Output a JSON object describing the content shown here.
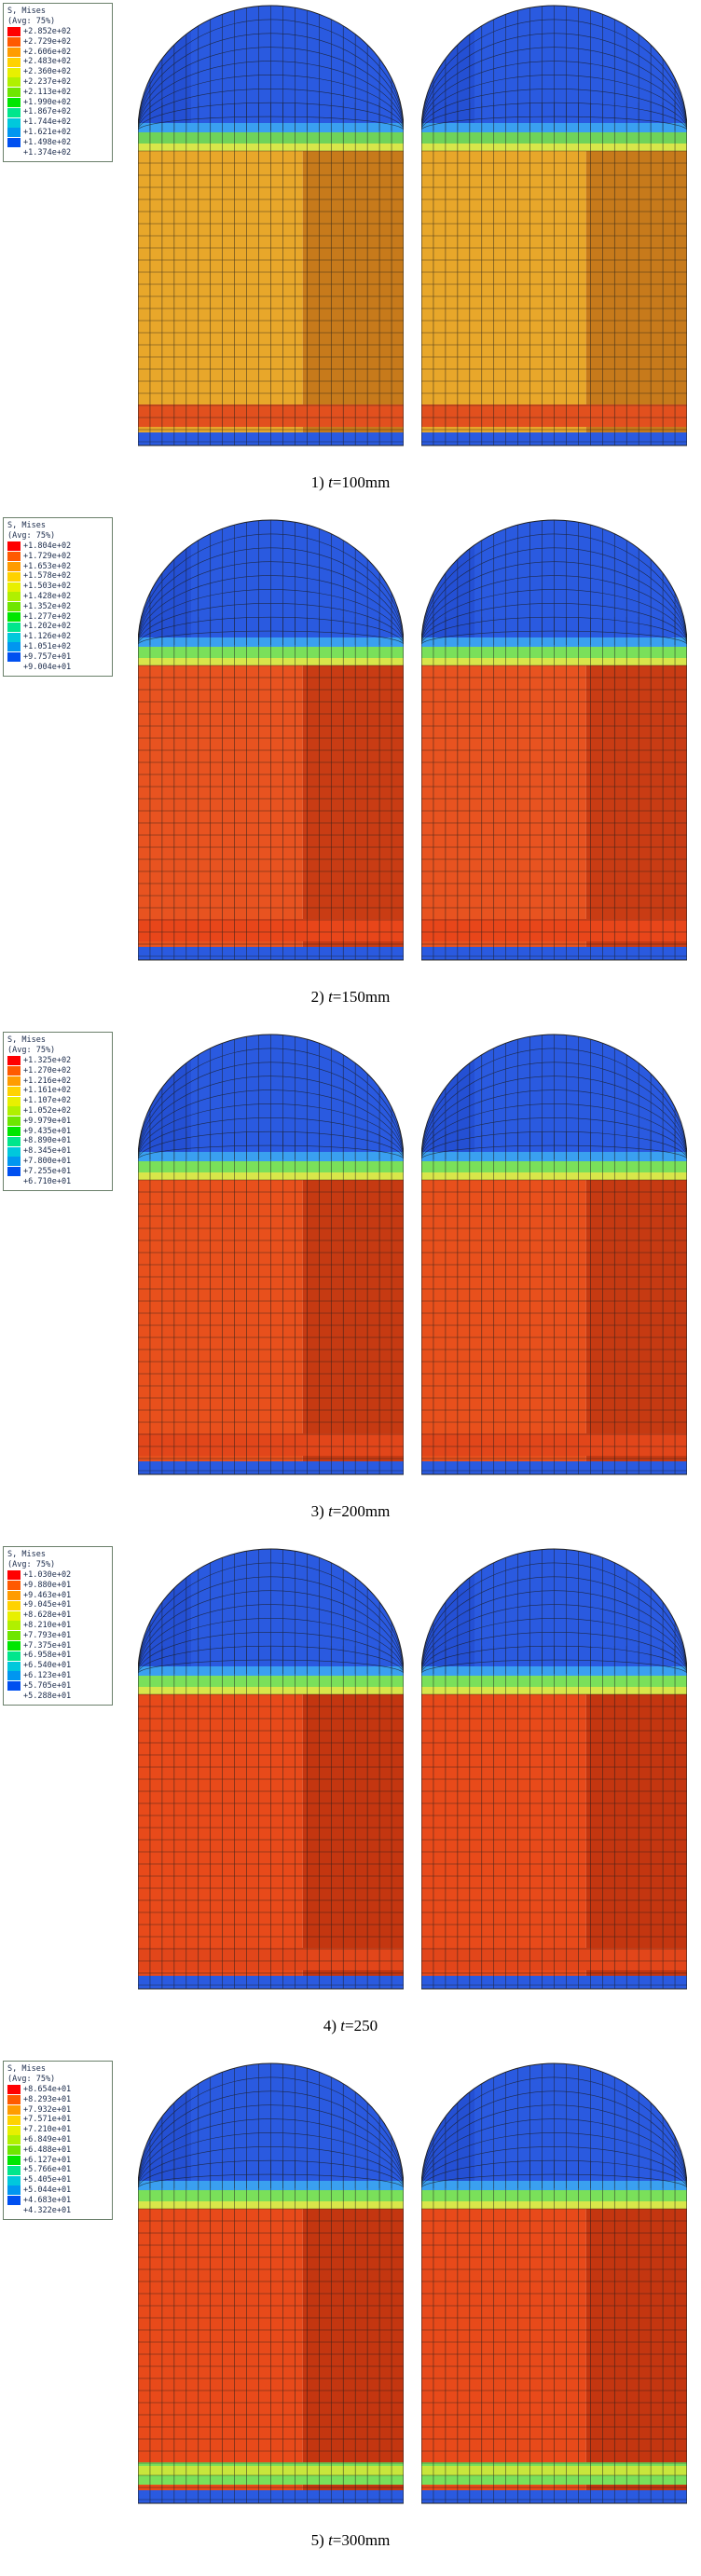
{
  "panels": [
    {
      "caption_prefix": "1)",
      "caption_var": "t",
      "caption_value": "=100mm",
      "legend_title": "S, Mises",
      "legend_avg": "(Avg: 75%)",
      "legend_values": [
        "+2.852e+02",
        "+2.729e+02",
        "+2.606e+02",
        "+2.483e+02",
        "+2.360e+02",
        "+2.237e+02",
        "+2.113e+02",
        "+1.990e+02",
        "+1.867e+02",
        "+1.744e+02",
        "+1.621e+02",
        "+1.498e+02",
        "+1.374e+02"
      ],
      "body_colors": [
        "#e8a72a",
        "#c77a1b"
      ],
      "band_color": "#e2501e",
      "neck_color": "#6fd35a"
    },
    {
      "caption_prefix": "2)",
      "caption_var": "t",
      "caption_value": "=150mm",
      "legend_title": "S, Mises",
      "legend_avg": "(Avg: 75%)",
      "legend_values": [
        "+1.804e+02",
        "+1.729e+02",
        "+1.653e+02",
        "+1.578e+02",
        "+1.503e+02",
        "+1.428e+02",
        "+1.352e+02",
        "+1.277e+02",
        "+1.202e+02",
        "+1.126e+02",
        "+1.051e+02",
        "+9.757e+01",
        "+9.004e+01"
      ],
      "body_colors": [
        "#e85320",
        "#c93c14"
      ],
      "band_color": "#e8461a",
      "neck_color": "#7ae05a"
    },
    {
      "caption_prefix": "3)",
      "caption_var": "t",
      "caption_value": "=200mm",
      "legend_title": "S, Mises",
      "legend_avg": "(Avg: 75%)",
      "legend_values": [
        "+1.325e+02",
        "+1.270e+02",
        "+1.216e+02",
        "+1.161e+02",
        "+1.107e+02",
        "+1.052e+02",
        "+9.979e+01",
        "+9.435e+01",
        "+8.890e+01",
        "+8.345e+01",
        "+7.800e+01",
        "+7.255e+01",
        "+6.710e+01"
      ],
      "body_colors": [
        "#e8501c",
        "#c63a12"
      ],
      "band_color": "#e2461a",
      "neck_color": "#7ae05a"
    },
    {
      "caption_prefix": "4)",
      "caption_var": "t",
      "caption_value": "=250",
      "legend_title": "S, Mises",
      "legend_avg": "(Avg: 75%)",
      "legend_values": [
        "+1.030e+02",
        "+9.880e+01",
        "+9.463e+01",
        "+9.045e+01",
        "+8.628e+01",
        "+8.210e+01",
        "+7.793e+01",
        "+7.375e+01",
        "+6.958e+01",
        "+6.540e+01",
        "+6.123e+01",
        "+5.705e+01",
        "+5.288e+01"
      ],
      "body_colors": [
        "#e84a1a",
        "#c43610"
      ],
      "band_color": "#e2461a",
      "neck_color": "#7ae05a"
    },
    {
      "caption_prefix": "5)",
      "caption_var": "t",
      "caption_value": "=300mm",
      "legend_title": "S, Mises",
      "legend_avg": "(Avg: 75%)",
      "legend_values": [
        "+8.654e+01",
        "+8.293e+01",
        "+7.932e+01",
        "+7.571e+01",
        "+7.210e+01",
        "+6.849e+01",
        "+6.488e+01",
        "+6.127e+01",
        "+5.766e+01",
        "+5.405e+01",
        "+5.044e+01",
        "+4.683e+01",
        "+4.322e+01"
      ],
      "body_colors": [
        "#e84a1a",
        "#c43610"
      ],
      "band_color": "#7ae05a",
      "neck_color": "#7ae05a"
    }
  ],
  "legend_colors": [
    "#ff0000",
    "#ff5a00",
    "#ff9c00",
    "#ffd200",
    "#e8f000",
    "#b0f000",
    "#6ee600",
    "#00e600",
    "#00e68c",
    "#00c8dc",
    "#0096f0",
    "#0050f0",
    "#0000ff"
  ],
  "dome_color": "#2a5ae0",
  "dome_dark": "#1e45c8",
  "base_color": "#2a5ae0"
}
